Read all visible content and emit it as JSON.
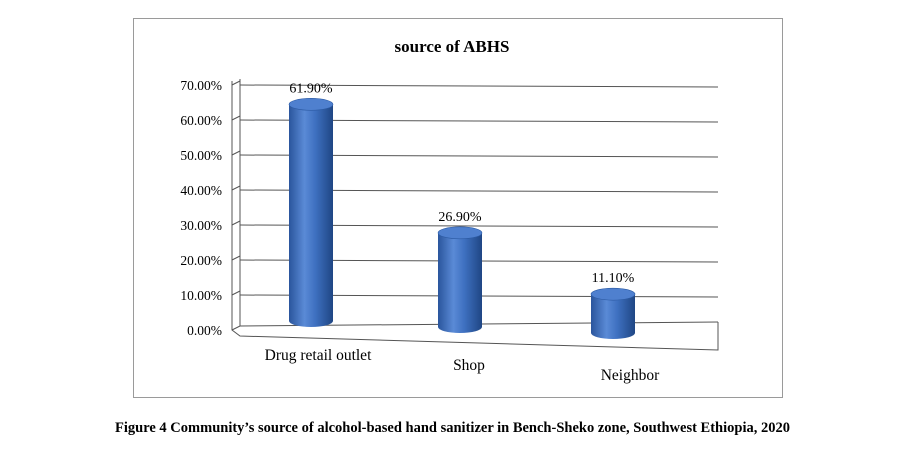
{
  "caption": "Figure 4 Community’s source of alcohol-based hand sanitizer in Bench-Sheko zone, Southwest Ethiopia, 2020",
  "chart_data": {
    "type": "bar",
    "title": "source of ABHS",
    "categories": [
      "Drug retail outlet",
      "Shop",
      "Neighbor"
    ],
    "values": [
      61.9,
      26.9,
      11.1
    ],
    "value_labels": [
      "61.90%",
      "26.90%",
      "11.10%"
    ],
    "yticks": [
      "0.00%",
      "10.00%",
      "20.00%",
      "30.00%",
      "40.00%",
      "50.00%",
      "60.00%",
      "70.00%"
    ],
    "ylim": [
      0,
      70
    ],
    "grid": true,
    "legend": "none",
    "bar_color": "#3d6fbf"
  }
}
